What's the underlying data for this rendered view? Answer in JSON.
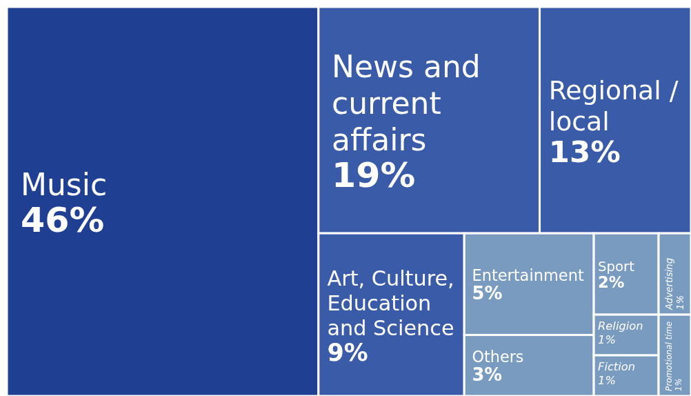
{
  "chart_data": {
    "type": "other",
    "categories": [
      "Music",
      "News and current affairs",
      "Regional / local",
      "Art, Culture, Education and Science",
      "Entertainment",
      "Others",
      "Sport",
      "Religion",
      "Fiction",
      "Advertising",
      "Promotional time"
    ],
    "values": [
      46,
      19,
      13,
      9,
      5,
      3,
      2,
      1,
      1,
      1,
      1
    ],
    "value_labels": [
      "46%",
      "19%",
      "13%",
      "9%",
      "5%",
      "3%",
      "2%",
      "1%",
      "1%",
      "1%",
      "1%"
    ],
    "colors": [
      "#1f4092",
      "#3a5ba8",
      "#3a5ba8",
      "#3a5ba8",
      "#7a9bc0",
      "#7a9bc0",
      "#7a9bc0",
      "#7a9bc0",
      "#7a9bc0",
      "#7a9bc0",
      "#7a9bc0"
    ]
  }
}
